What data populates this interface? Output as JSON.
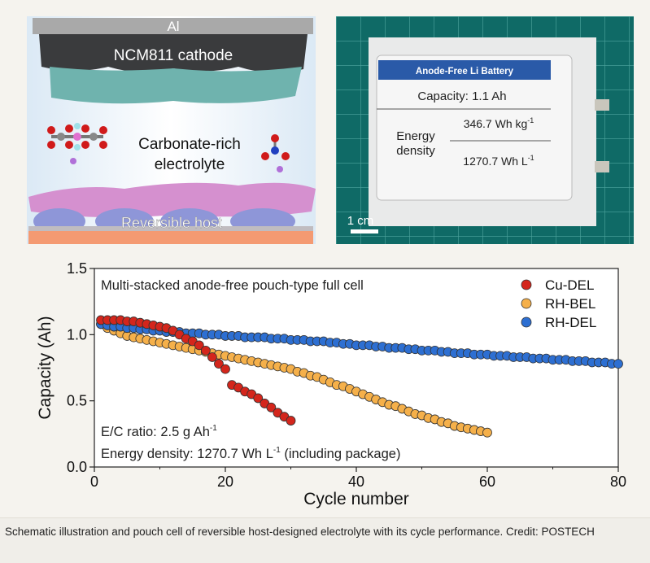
{
  "illustration": {
    "al_label": "Al",
    "cathode_label": "NCM811 cathode",
    "electrolyte_label_line1": "Carbonate-rich",
    "electrolyte_label_line2": "electrolyte",
    "host_label": "Reversible host"
  },
  "photo": {
    "label_title": "Anode-Free Li Battery",
    "capacity_text": "Capacity:  1.1 Ah",
    "energy_label_line1": "Energy",
    "energy_label_line2": "density",
    "gravimetric": "346.7 Wh kg",
    "gravimetric_sup": "-1",
    "volumetric": "1270.7 Wh L",
    "volumetric_sup": "-1",
    "scale_bar": "1 cm"
  },
  "chart_data": {
    "type": "scatter",
    "title": "Multi-stacked anode-free pouch-type full cell",
    "xlabel": "Cycle number",
    "ylabel": "Capacity (Ah)",
    "xlim": [
      0,
      80
    ],
    "ylim": [
      0,
      1.5
    ],
    "xticks": [
      "0",
      "20",
      "40",
      "60",
      "80"
    ],
    "yticks": [
      "0.0",
      "0.5",
      "1.0",
      "1.5"
    ],
    "legend_position": "top-right",
    "annotations": {
      "ec_ratio": "E/C ratio: 2.5 g Ah",
      "ec_ratio_sup": "-1",
      "energy_density": "Energy density: 1270.7 Wh L",
      "energy_density_sup": "-1",
      "energy_density_suffix": " (including package)"
    },
    "series": [
      {
        "name": "RH-BEL",
        "color": "#f5b04a",
        "values": [
          1.08,
          1.05,
          1.03,
          1.01,
          0.99,
          0.98,
          0.97,
          0.96,
          0.95,
          0.94,
          0.93,
          0.92,
          0.91,
          0.9,
          0.89,
          0.88,
          0.87,
          0.86,
          0.85,
          0.84,
          0.83,
          0.82,
          0.81,
          0.8,
          0.79,
          0.78,
          0.77,
          0.76,
          0.75,
          0.74,
          0.72,
          0.71,
          0.69,
          0.68,
          0.66,
          0.64,
          0.62,
          0.61,
          0.59,
          0.57,
          0.55,
          0.53,
          0.51,
          0.49,
          0.47,
          0.46,
          0.44,
          0.42,
          0.4,
          0.39,
          0.37,
          0.36,
          0.34,
          0.33,
          0.31,
          0.3,
          0.29,
          0.28,
          0.27,
          0.26
        ]
      },
      {
        "name": "RH-DEL",
        "color": "#2d6fd2",
        "values": [
          1.08,
          1.07,
          1.06,
          1.06,
          1.05,
          1.05,
          1.04,
          1.04,
          1.03,
          1.03,
          1.02,
          1.02,
          1.02,
          1.01,
          1.01,
          1.01,
          1.0,
          1.0,
          1.0,
          0.99,
          0.99,
          0.99,
          0.98,
          0.98,
          0.98,
          0.98,
          0.97,
          0.97,
          0.97,
          0.96,
          0.96,
          0.96,
          0.95,
          0.95,
          0.95,
          0.94,
          0.94,
          0.93,
          0.93,
          0.92,
          0.92,
          0.92,
          0.91,
          0.91,
          0.9,
          0.9,
          0.9,
          0.89,
          0.89,
          0.88,
          0.88,
          0.88,
          0.87,
          0.87,
          0.86,
          0.86,
          0.86,
          0.85,
          0.85,
          0.85,
          0.84,
          0.84,
          0.84,
          0.83,
          0.83,
          0.83,
          0.82,
          0.82,
          0.82,
          0.81,
          0.81,
          0.81,
          0.8,
          0.8,
          0.8,
          0.79,
          0.79,
          0.79,
          0.78,
          0.78
        ]
      },
      {
        "name": "Cu-DEL",
        "color": "#d4261c",
        "values": [
          1.11,
          1.11,
          1.11,
          1.11,
          1.1,
          1.1,
          1.09,
          1.08,
          1.07,
          1.06,
          1.05,
          1.03,
          1.0,
          0.97,
          0.95,
          0.92,
          0.88,
          0.83,
          0.78,
          0.74,
          0.62,
          0.6,
          0.57,
          0.55,
          0.52,
          0.48,
          0.45,
          0.41,
          0.38,
          0.35
        ]
      }
    ],
    "legend_order": [
      "Cu-DEL",
      "RH-BEL",
      "RH-DEL"
    ]
  },
  "caption": "Schematic illustration and pouch cell of reversible host-designed electrolyte with its cycle performance. Credit: POSTECH"
}
